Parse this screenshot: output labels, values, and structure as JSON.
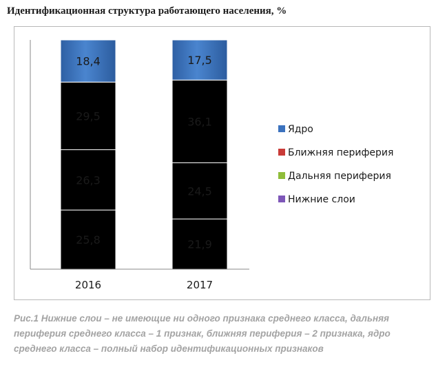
{
  "page": {
    "title": "Идентификационная структура работающего населения, %",
    "caption": "Рис.1 Нижние слои – не имеющие ни одного признака среднего класса, дальняя периферия среднего класса – 1 признак, ближняя периферия – 2 признака, ядро среднего класса – полный набор идентификационных признаков"
  },
  "chart_data": {
    "type": "bar",
    "stacked": true,
    "title": "Идентификационная структура работающего населения, %",
    "categories": [
      "2016",
      "2017"
    ],
    "series": [
      {
        "name": "Нижние слои",
        "values": [
          25.8,
          21.9
        ],
        "labels": [
          "25,8",
          "21,9"
        ],
        "color": "#7e57b8"
      },
      {
        "name": "Дальняя периферия",
        "values": [
          26.3,
          24.5
        ],
        "labels": [
          "26,3",
          "24,5"
        ],
        "color": "#8fbd3a"
      },
      {
        "name": "Ближняя периферия",
        "values": [
          29.5,
          36.1
        ],
        "labels": [
          "29,5",
          "36,1"
        ],
        "color": "#c93b38"
      },
      {
        "name": "Ядро",
        "values": [
          18.4,
          17.5
        ],
        "labels": [
          "18,4",
          "17,5"
        ],
        "color": "#3b72be"
      }
    ],
    "legend_order": [
      "Ядро",
      "Ближняя периферия",
      "Дальняя периферия",
      "Нижние слои"
    ],
    "ylim": [
      0,
      100
    ],
    "legend_position": "right",
    "grid": false
  }
}
